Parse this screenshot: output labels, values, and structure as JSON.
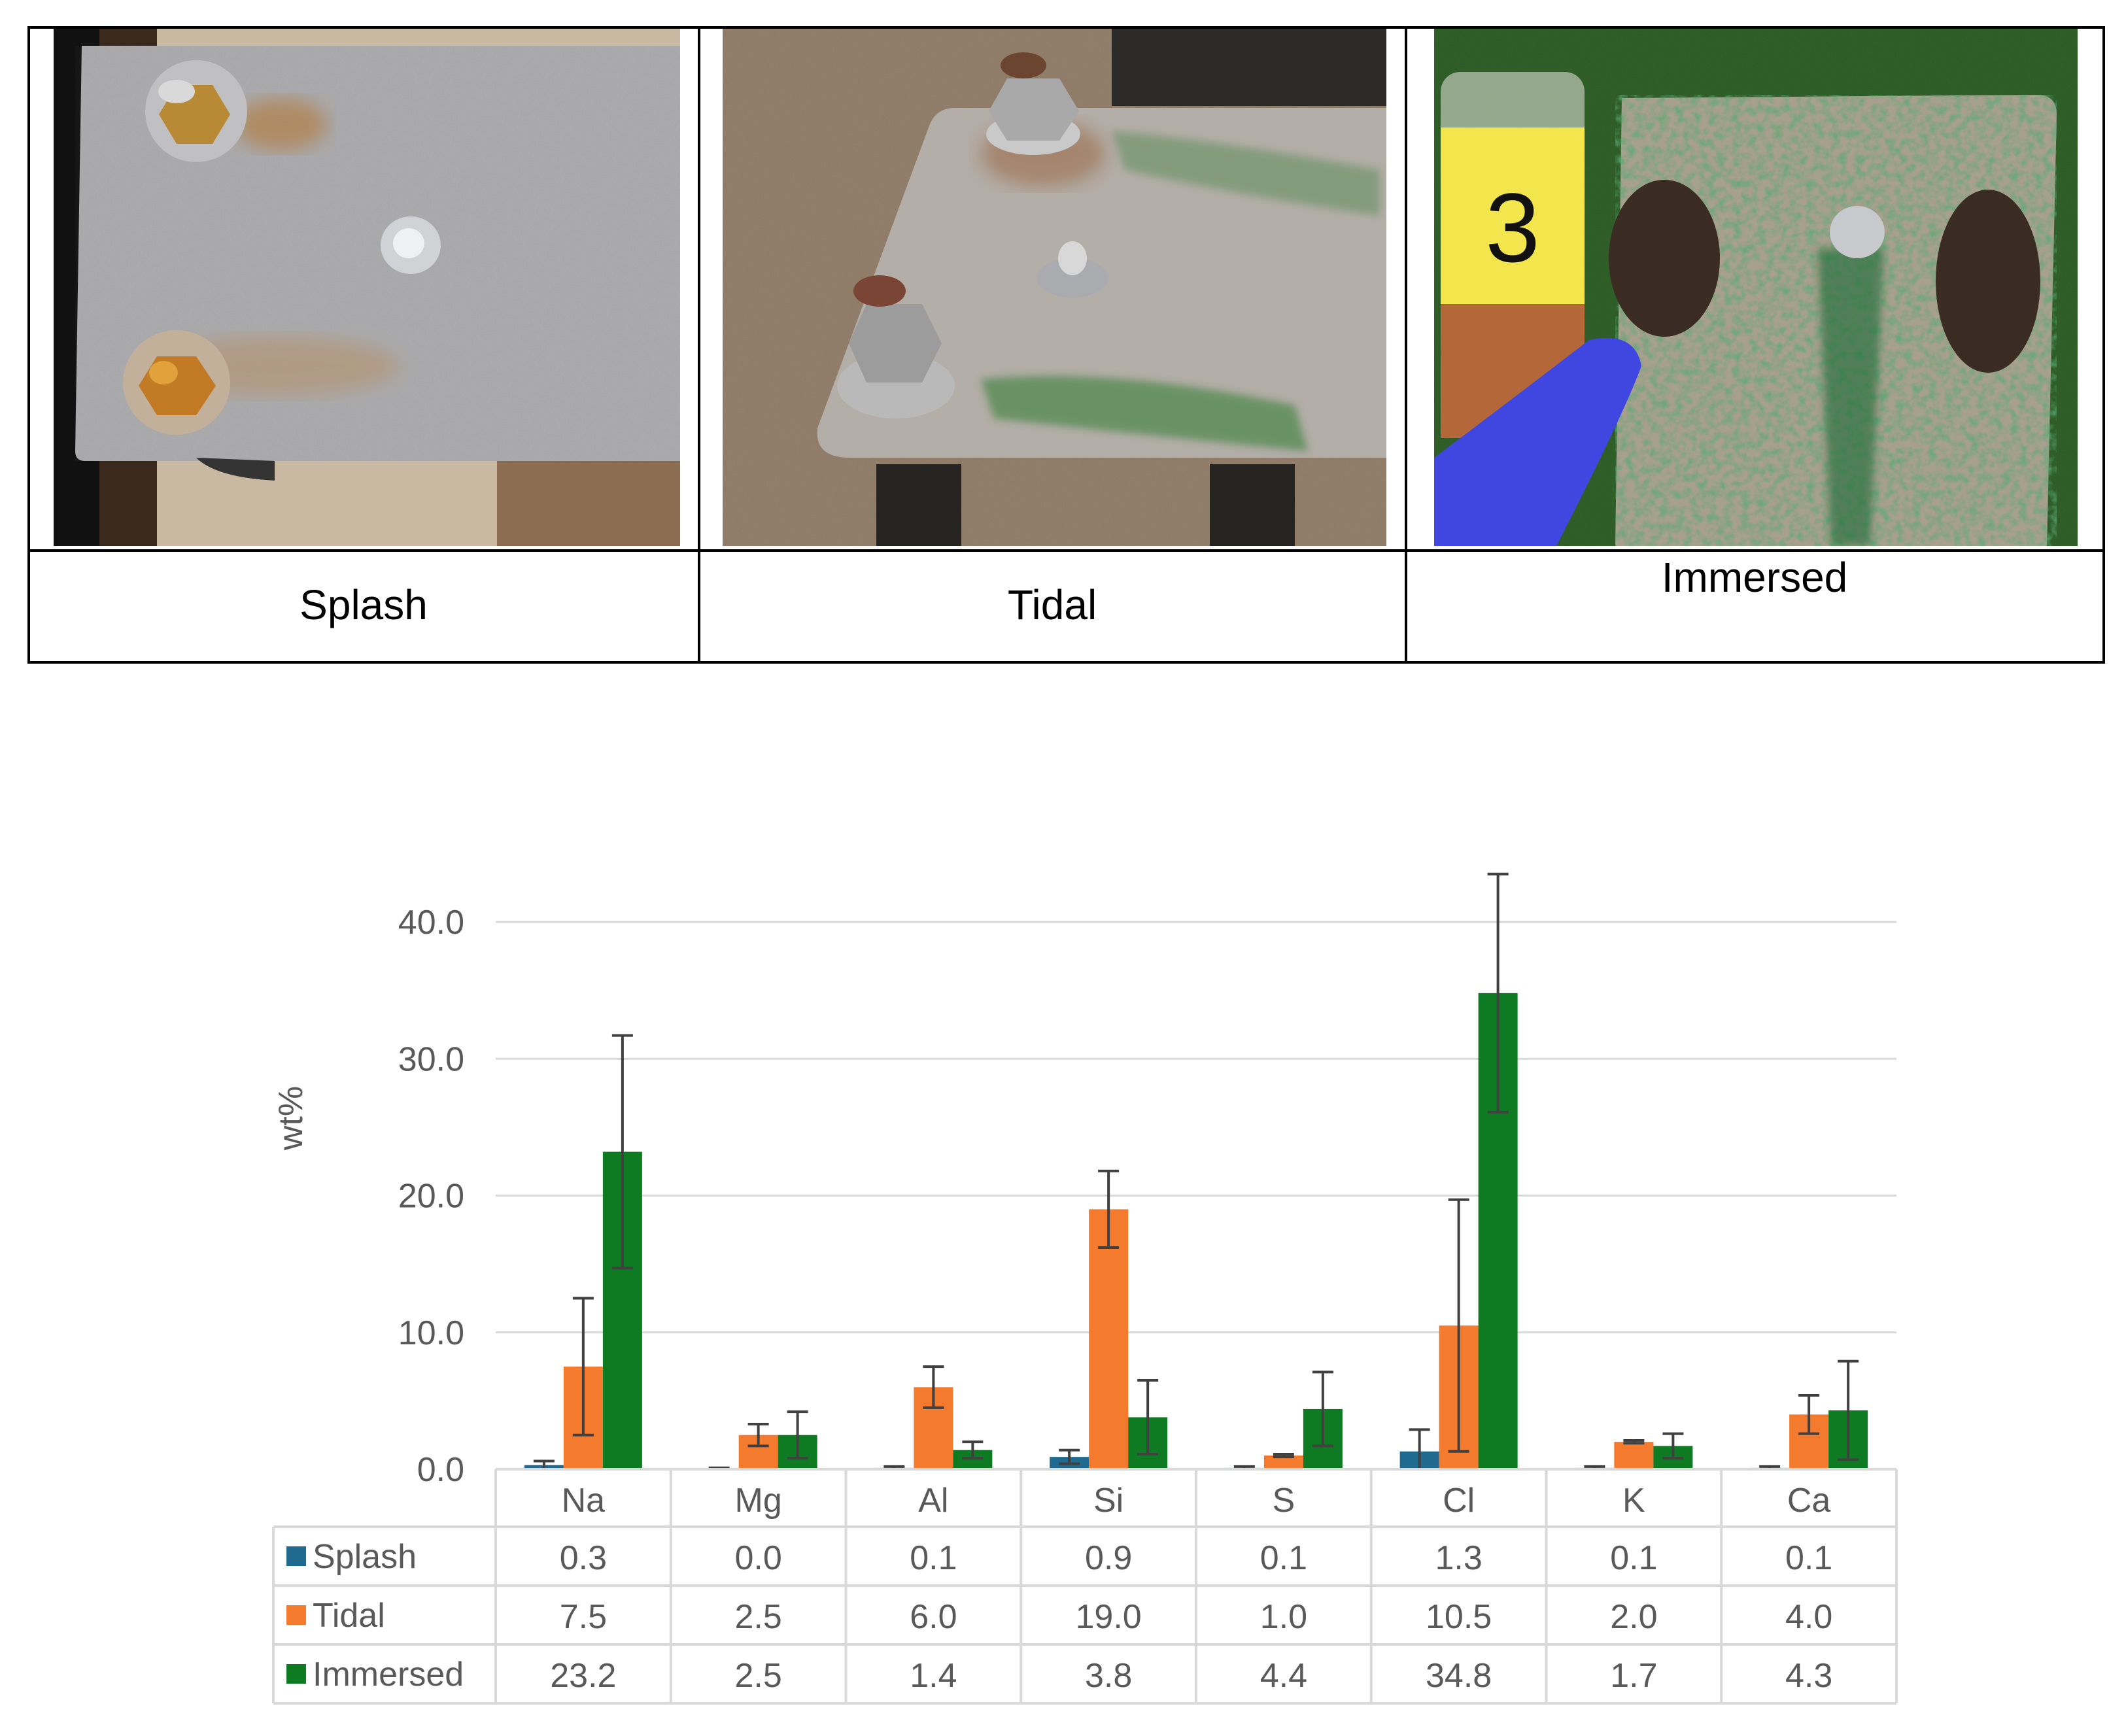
{
  "photo_panels": [
    {
      "caption": "Splash"
    },
    {
      "caption": "Tidal"
    },
    {
      "caption": "Immersed"
    }
  ],
  "photo_note": {
    "vial_number": "3"
  },
  "colors": {
    "splash": "#1F6A8E",
    "tidal": "#F47A2E",
    "immersed": "#0E7B22",
    "grid": "#D9D9D9",
    "error_bar": "#404040",
    "text": "#595959"
  },
  "chart_data": {
    "type": "bar",
    "ylabel": "wt%",
    "ylim": [
      0,
      40
    ],
    "yticks": [
      "0.0",
      "10.0",
      "20.0",
      "30.0",
      "40.0"
    ],
    "grid": true,
    "legend": "data-table",
    "categories": [
      "Na",
      "Mg",
      "Al",
      "Si",
      "S",
      "Cl",
      "K",
      "Ca"
    ],
    "series": [
      {
        "name": "Splash",
        "color": "#1F6A8E",
        "values": [
          0.3,
          0.0,
          0.1,
          0.9,
          0.1,
          1.3,
          0.1,
          0.1
        ],
        "labels": [
          "0.3",
          "0.0",
          "0.1",
          "0.9",
          "0.1",
          "1.3",
          "0.1",
          "0.1"
        ],
        "errors": [
          0.3,
          0.1,
          0.1,
          0.5,
          0.1,
          1.6,
          0.1,
          0.1
        ]
      },
      {
        "name": "Tidal",
        "color": "#F47A2E",
        "values": [
          7.5,
          2.5,
          6.0,
          19.0,
          1.0,
          10.5,
          2.0,
          4.0
        ],
        "labels": [
          "7.5",
          "2.5",
          "6.0",
          "19.0",
          "1.0",
          "10.5",
          "2.0",
          "4.0"
        ],
        "errors": [
          5.0,
          0.8,
          1.5,
          2.8,
          0.1,
          9.2,
          0.1,
          1.4
        ]
      },
      {
        "name": "Immersed",
        "color": "#0E7B22",
        "values": [
          23.2,
          2.5,
          1.4,
          3.8,
          4.4,
          34.8,
          1.7,
          4.3
        ],
        "labels": [
          "23.2",
          "2.5",
          "1.4",
          "3.8",
          "4.4",
          "34.8",
          "1.7",
          "4.3"
        ],
        "errors": [
          8.5,
          1.7,
          0.6,
          2.7,
          2.7,
          8.7,
          0.9,
          3.6
        ]
      }
    ]
  }
}
